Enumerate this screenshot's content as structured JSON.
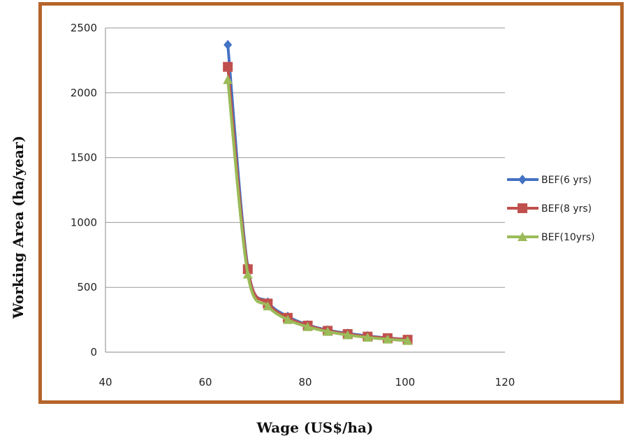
{
  "chart_data": {
    "type": "line",
    "xlabel": "Wage (US$/ha)",
    "ylabel": "Working Area (ha/year)",
    "xlim": [
      40,
      120
    ],
    "ylim": [
      0,
      2500
    ],
    "xticks": [
      40,
      60,
      80,
      100,
      120
    ],
    "yticks": [
      0,
      500,
      1000,
      1500,
      2000,
      2500
    ],
    "grid": "horizontal",
    "legend_position": "right",
    "series": [
      {
        "name": "BEF(6 yrs)",
        "color": "#4472c4",
        "marker": "diamond",
        "x": [
          64.5,
          68.5,
          72.5,
          76.5,
          80.5,
          84.5,
          88.5,
          92.5,
          96.5,
          100.5
        ],
        "y": [
          2370,
          655,
          385,
          275,
          210,
          170,
          145,
          125,
          110,
          98
        ]
      },
      {
        "name": "BEF(8 yrs)",
        "color": "#c0504d",
        "marker": "square",
        "x": [
          64.5,
          68.5,
          72.5,
          76.5,
          80.5,
          84.5,
          88.5,
          92.5,
          96.5,
          100.5
        ],
        "y": [
          2200,
          640,
          375,
          265,
          205,
          165,
          140,
          120,
          108,
          96
        ]
      },
      {
        "name": "BEF(10yrs)",
        "color": "#9bbb59",
        "marker": "triangle",
        "x": [
          64.5,
          68.5,
          72.5,
          76.5,
          80.5,
          84.5,
          88.5,
          92.5,
          96.5,
          100.5
        ],
        "y": [
          2100,
          600,
          355,
          250,
          195,
          158,
          132,
          113,
          99,
          88
        ]
      }
    ]
  }
}
